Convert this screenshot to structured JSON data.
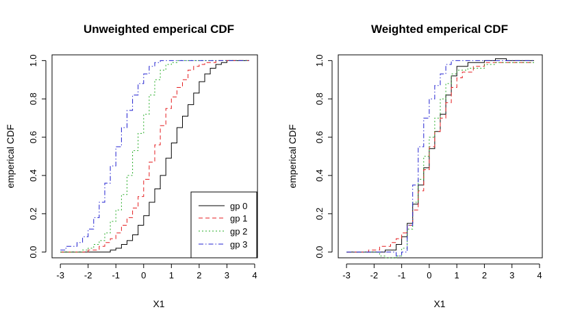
{
  "chart_data": [
    {
      "type": "line",
      "title": "Unweighted emperical CDF",
      "xlabel": "X1",
      "ylabel": "emperical CDF",
      "xlim": [
        -3.3,
        4.1
      ],
      "ylim": [
        -0.03,
        1.03
      ],
      "xticks": [
        "-3",
        "-2",
        "-1",
        "0",
        "1",
        "2",
        "3",
        "4"
      ],
      "yticks": [
        "0.0",
        "0.2",
        "0.4",
        "0.6",
        "0.8",
        "1.0"
      ],
      "legend": {
        "position": "bottom-right",
        "entries": [
          "gp 0",
          "gp 1",
          "gp 2",
          "gp 3"
        ]
      },
      "series": [
        {
          "name": "gp 0",
          "color": "#000000",
          "dash": "solid",
          "x": [
            -3.0,
            -1.6,
            -1.2,
            -1.0,
            -0.8,
            -0.6,
            -0.4,
            -0.2,
            0.0,
            0.2,
            0.4,
            0.6,
            0.8,
            1.0,
            1.2,
            1.4,
            1.6,
            1.8,
            2.0,
            2.2,
            2.4,
            2.6,
            2.8,
            3.0,
            3.4,
            3.8
          ],
          "y": [
            0.0,
            0.0,
            0.01,
            0.02,
            0.04,
            0.06,
            0.09,
            0.14,
            0.19,
            0.26,
            0.33,
            0.4,
            0.49,
            0.57,
            0.65,
            0.71,
            0.77,
            0.83,
            0.89,
            0.93,
            0.96,
            0.98,
            0.99,
            1.0,
            1.0,
            1.0
          ]
        },
        {
          "name": "gp 1",
          "color": "#e41a1c",
          "dash": "6,4",
          "x": [
            -3.0,
            -2.0,
            -1.6,
            -1.4,
            -1.2,
            -1.0,
            -0.8,
            -0.6,
            -0.4,
            -0.2,
            0.0,
            0.2,
            0.4,
            0.6,
            0.8,
            1.0,
            1.2,
            1.4,
            1.6,
            1.8,
            2.0,
            2.2,
            2.6,
            3.0,
            3.8
          ],
          "y": [
            0.0,
            0.01,
            0.03,
            0.05,
            0.07,
            0.1,
            0.14,
            0.18,
            0.23,
            0.29,
            0.38,
            0.47,
            0.56,
            0.66,
            0.75,
            0.81,
            0.86,
            0.9,
            0.95,
            0.97,
            0.98,
            0.99,
            1.0,
            1.0,
            1.0
          ]
        },
        {
          "name": "gp 2",
          "color": "#22aa22",
          "dash": "2,3",
          "x": [
            -3.0,
            -2.2,
            -2.0,
            -1.8,
            -1.6,
            -1.4,
            -1.2,
            -1.0,
            -0.8,
            -0.6,
            -0.4,
            -0.2,
            0.0,
            0.2,
            0.4,
            0.6,
            0.8,
            1.0,
            1.2,
            1.6,
            2.0,
            3.8
          ],
          "y": [
            0.0,
            0.01,
            0.02,
            0.04,
            0.06,
            0.1,
            0.16,
            0.22,
            0.3,
            0.4,
            0.53,
            0.62,
            0.72,
            0.82,
            0.9,
            0.95,
            0.98,
            0.99,
            1.0,
            1.0,
            1.0,
            1.0
          ]
        },
        {
          "name": "gp 3",
          "color": "#1f1fd0",
          "dash": "7,3,1.5,3",
          "x": [
            -3.0,
            -2.8,
            -2.4,
            -2.2,
            -2.0,
            -1.8,
            -1.6,
            -1.4,
            -1.2,
            -1.0,
            -0.8,
            -0.6,
            -0.4,
            -0.2,
            0.0,
            0.2,
            0.4,
            0.6,
            0.8,
            1.0,
            3.8
          ],
          "y": [
            0.01,
            0.03,
            0.05,
            0.08,
            0.12,
            0.18,
            0.26,
            0.36,
            0.45,
            0.55,
            0.65,
            0.74,
            0.82,
            0.88,
            0.93,
            0.97,
            0.99,
            1.0,
            1.0,
            1.0,
            1.0
          ]
        }
      ]
    },
    {
      "type": "line",
      "title": "Weighted emperical CDF",
      "xlabel": "X1",
      "ylabel": "emperical CDF",
      "xlim": [
        -3.3,
        4.1
      ],
      "ylim": [
        -0.03,
        1.03
      ],
      "xticks": [
        "-3",
        "-2",
        "-1",
        "0",
        "1",
        "2",
        "3",
        "4"
      ],
      "yticks": [
        "0.0",
        "0.2",
        "0.4",
        "0.6",
        "0.8",
        "1.0"
      ],
      "series": [
        {
          "name": "gp 0",
          "color": "#000000",
          "dash": "solid",
          "x": [
            -3.0,
            -1.6,
            -1.2,
            -1.0,
            -0.8,
            -0.6,
            -0.4,
            -0.2,
            0.0,
            0.2,
            0.4,
            0.6,
            0.8,
            1.0,
            1.4,
            2.0,
            2.4,
            2.8,
            3.8
          ],
          "y": [
            0.0,
            0.01,
            0.04,
            0.08,
            0.15,
            0.25,
            0.35,
            0.44,
            0.54,
            0.63,
            0.72,
            0.82,
            0.92,
            0.97,
            0.99,
            1.0,
            1.01,
            1.0,
            1.0
          ]
        },
        {
          "name": "gp 1",
          "color": "#e41a1c",
          "dash": "6,4",
          "x": [
            -3.0,
            -2.2,
            -1.8,
            -1.4,
            -1.2,
            -1.0,
            -0.8,
            -0.6,
            -0.4,
            -0.2,
            0.0,
            0.2,
            0.4,
            0.6,
            0.8,
            1.0,
            1.2,
            1.6,
            2.0,
            3.8
          ],
          "y": [
            0.0,
            0.01,
            0.03,
            0.05,
            0.07,
            0.1,
            0.14,
            0.22,
            0.32,
            0.43,
            0.55,
            0.63,
            0.7,
            0.78,
            0.86,
            0.91,
            0.94,
            0.97,
            0.99,
            0.99
          ]
        },
        {
          "name": "gp 2",
          "color": "#22aa22",
          "dash": "2,3",
          "x": [
            -3.0,
            -2.0,
            -1.8,
            -1.6,
            -1.4,
            -1.2,
            -1.0,
            -0.8,
            -0.6,
            -0.4,
            -0.2,
            0.0,
            0.2,
            0.4,
            0.6,
            0.8,
            1.0,
            1.4,
            2.0,
            2.4,
            3.8
          ],
          "y": [
            0.0,
            0.0,
            -0.02,
            -0.03,
            -0.03,
            -0.02,
            0.02,
            0.12,
            0.26,
            0.38,
            0.5,
            0.6,
            0.7,
            0.8,
            0.88,
            0.93,
            0.95,
            0.96,
            0.98,
            0.99,
            0.99
          ]
        },
        {
          "name": "gp 3",
          "color": "#1f1fd0",
          "dash": "7,3,1.5,3",
          "x": [
            -3.0,
            -1.4,
            -1.2,
            -1.0,
            -0.8,
            -0.6,
            -0.4,
            -0.2,
            0.0,
            0.2,
            0.4,
            0.6,
            0.8,
            1.0,
            2.0,
            3.8
          ],
          "y": [
            0.0,
            0.0,
            -0.02,
            0.0,
            0.14,
            0.35,
            0.55,
            0.7,
            0.8,
            0.87,
            0.93,
            0.98,
            1.0,
            1.0,
            1.0,
            1.0
          ]
        }
      ]
    }
  ]
}
